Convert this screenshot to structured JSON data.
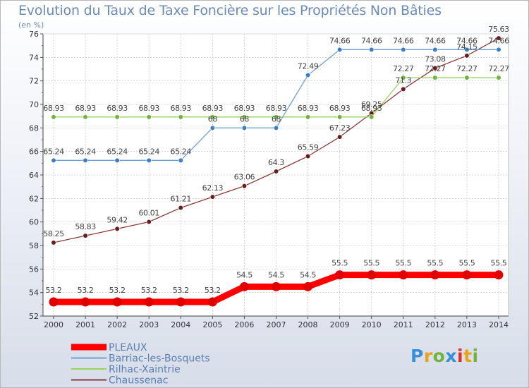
{
  "chart_data": {
    "type": "line",
    "title": "Evolution du Taux de Taxe Foncière sur les Propriétés Non Bâties",
    "unit_label": "(en %)",
    "x": [
      "2000",
      "2001",
      "2002",
      "2003",
      "2004",
      "2005",
      "2006",
      "2007",
      "2008",
      "2009",
      "2010",
      "2011",
      "2012",
      "2013",
      "2014"
    ],
    "ylim": [
      52,
      76
    ],
    "yticks": [
      52,
      54,
      56,
      58,
      60,
      62,
      64,
      66,
      68,
      70,
      72,
      74,
      76
    ],
    "grid": true,
    "legend_position": "bottom-left",
    "series": [
      {
        "name": "PLEAUX",
        "color": "#ff0000",
        "point_color": "#e00000",
        "values": [
          53.2,
          53.2,
          53.2,
          53.2,
          53.2,
          53.2,
          54.5,
          54.5,
          54.5,
          55.5,
          55.5,
          55.5,
          55.5,
          55.5,
          55.5
        ],
        "labels": [
          "53.2",
          "53.2",
          "53.2",
          "53.2",
          "53.2",
          "53.2",
          "54.5",
          "54.5",
          "54.5",
          "55.5",
          "55.5",
          "55.5",
          "55.5",
          "55.5",
          "55.5"
        ]
      },
      {
        "name": "Barriac-les-Bosquets",
        "color": "#6fa0d4",
        "point_color": "#3a7fc3",
        "values": [
          65.24,
          65.24,
          65.24,
          65.24,
          65.24,
          68,
          68,
          68,
          72.49,
          74.66,
          74.66,
          74.66,
          74.66,
          74.66,
          74.66
        ],
        "labels": [
          "65.24",
          "65.24",
          "65.24",
          "65.24",
          "65.24",
          "68",
          "68",
          "68",
          "72.49",
          "74.66",
          "74.66",
          "74.66",
          "74.66",
          "74.66",
          "74.66"
        ]
      },
      {
        "name": "Rilhac-Xaintrie",
        "color": "#9ad45e",
        "point_color": "#6fb43f",
        "values": [
          68.93,
          68.93,
          68.93,
          68.93,
          68.93,
          68.93,
          68.93,
          68.93,
          68.93,
          68.93,
          68.93,
          72.27,
          72.27,
          72.27,
          72.27
        ],
        "labels": [
          "68.93",
          "68.93",
          "68.93",
          "68.93",
          "68.93",
          "68.93",
          "68.93",
          "68.93",
          "68.93",
          "68.93",
          "68.93",
          "72.27",
          "72.27",
          "72.27",
          "72.27"
        ]
      },
      {
        "name": "Chaussenac",
        "color": "#8b3a3a",
        "point_color": "#6a1d1d",
        "values": [
          58.25,
          58.83,
          59.42,
          60.01,
          61.21,
          62.13,
          63.06,
          64.3,
          65.59,
          67.23,
          69.25,
          71.3,
          73.08,
          74.15,
          75.63
        ],
        "labels": [
          "58.25",
          "58.83",
          "59.42",
          "60.01",
          "61.21",
          "62.13",
          "63.06",
          "64.3",
          "65.59",
          "67.23",
          "69.25",
          "71.3",
          "73.08",
          "74.15",
          "75.63"
        ]
      }
    ]
  },
  "logo_text": "Proxiti",
  "logo_letters": [
    "P",
    "r",
    "o",
    "x",
    "i",
    "t",
    "i"
  ]
}
